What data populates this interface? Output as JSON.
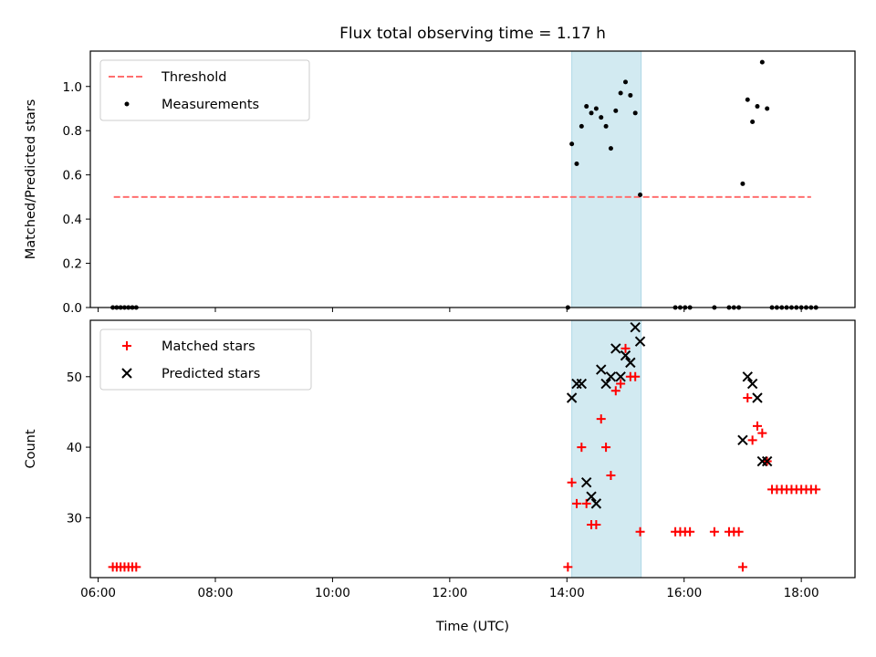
{
  "chart_data": [
    {
      "type": "scatter",
      "title": "Flux total observing time = 1.17 h",
      "xlabel": "",
      "ylabel": "Matched/Predicted stars",
      "xlim": [
        "05:52",
        "18:55"
      ],
      "ylim": [
        0,
        1.16
      ],
      "yticks": [
        0.0,
        0.2,
        0.4,
        0.6,
        0.8,
        1.0
      ],
      "ytick_labels": [
        "0.0",
        "0.2",
        "0.4",
        "0.6",
        "0.8",
        "1.0"
      ],
      "shaded_interval": {
        "from": "14:05",
        "to": "15:16",
        "color": "#add8e6"
      },
      "legend_position": "upper-left",
      "legend": [
        {
          "label": "Threshold",
          "style": "dashed-line",
          "color": "#ff6f6f"
        },
        {
          "label": "Measurements",
          "style": "dot",
          "color": "#000000"
        }
      ],
      "series": [
        {
          "name": "Threshold",
          "style": "dashed-line",
          "color": "#ff6f6f",
          "x": [
            "06:16",
            "18:10"
          ],
          "y": [
            0.5,
            0.5
          ]
        },
        {
          "name": "Measurements",
          "style": "dot",
          "color": "#000000",
          "x": [
            "06:15",
            "06:19",
            "06:23",
            "06:27",
            "06:31",
            "06:35",
            "06:39",
            "14:01",
            "14:05",
            "14:10",
            "14:15",
            "14:20",
            "14:25",
            "14:30",
            "14:35",
            "14:40",
            "14:45",
            "14:50",
            "14:55",
            "15:00",
            "15:05",
            "15:10",
            "15:15",
            "15:51",
            "15:56",
            "16:01",
            "16:06",
            "16:31",
            "16:46",
            "16:51",
            "16:56",
            "17:00",
            "17:05",
            "17:10",
            "17:15",
            "17:20",
            "17:25",
            "17:30",
            "17:35",
            "17:40",
            "17:45",
            "17:50",
            "17:55",
            "18:00",
            "18:05",
            "18:10",
            "18:15"
          ],
          "y": [
            0,
            0,
            0,
            0,
            0,
            0,
            0,
            0,
            0.74,
            0.65,
            0.82,
            0.91,
            0.88,
            0.9,
            0.86,
            0.82,
            0.72,
            0.89,
            0.97,
            1.02,
            0.96,
            0.88,
            0.51,
            0,
            0,
            0,
            0,
            0,
            0,
            0,
            0,
            0.56,
            0.94,
            0.84,
            0.91,
            1.11,
            0.9,
            0,
            0,
            0,
            0,
            0,
            0,
            0,
            0,
            0,
            0
          ]
        }
      ]
    },
    {
      "type": "scatter",
      "title": "",
      "xlabel": "Time (UTC)",
      "ylabel": "Count",
      "xlim": [
        "05:52",
        "18:55"
      ],
      "ylim": [
        21.5,
        58
      ],
      "yticks": [
        30,
        40,
        50
      ],
      "ytick_labels": [
        "30",
        "40",
        "50"
      ],
      "xticks": [
        "06:00",
        "08:00",
        "10:00",
        "12:00",
        "14:00",
        "16:00",
        "18:00"
      ],
      "xtick_labels": [
        "06:00",
        "08:00",
        "10:00",
        "12:00",
        "14:00",
        "16:00",
        "18:00"
      ],
      "shaded_interval": {
        "from": "14:05",
        "to": "15:16",
        "color": "#add8e6"
      },
      "legend_position": "upper-left",
      "legend": [
        {
          "label": "Matched stars",
          "style": "plus",
          "color": "#ff0000"
        },
        {
          "label": "Predicted stars",
          "style": "x",
          "color": "#000000"
        }
      ],
      "series": [
        {
          "name": "Matched stars",
          "style": "plus",
          "color": "#ff0000",
          "x": [
            "06:15",
            "06:19",
            "06:23",
            "06:27",
            "06:31",
            "06:35",
            "06:39",
            "14:01",
            "14:05",
            "14:10",
            "14:15",
            "14:20",
            "14:25",
            "14:30",
            "14:35",
            "14:40",
            "14:45",
            "14:50",
            "14:55",
            "15:00",
            "15:05",
            "15:10",
            "15:15",
            "15:51",
            "15:56",
            "16:01",
            "16:06",
            "16:31",
            "16:46",
            "16:51",
            "16:56",
            "17:00",
            "17:05",
            "17:10",
            "17:15",
            "17:20",
            "17:25",
            "17:30",
            "17:35",
            "17:40",
            "17:45",
            "17:50",
            "17:55",
            "18:00",
            "18:05",
            "18:10",
            "18:15"
          ],
          "y": [
            23,
            23,
            23,
            23,
            23,
            23,
            23,
            23,
            35,
            32,
            40,
            32,
            29,
            29,
            44,
            40,
            36,
            48,
            49,
            54,
            50,
            50,
            28,
            28,
            28,
            28,
            28,
            28,
            28,
            28,
            28,
            23,
            47,
            41,
            43,
            42,
            38,
            34,
            34,
            34,
            34,
            34,
            34,
            34,
            34,
            34,
            34
          ]
        },
        {
          "name": "Predicted stars",
          "style": "x",
          "color": "#000000",
          "x": [
            "14:05",
            "14:10",
            "14:15",
            "14:20",
            "14:25",
            "14:30",
            "14:35",
            "14:40",
            "14:45",
            "14:50",
            "14:55",
            "15:00",
            "15:05",
            "15:10",
            "15:15",
            "17:00",
            "17:05",
            "17:10",
            "17:15",
            "17:20",
            "17:25"
          ],
          "y": [
            47,
            49,
            49,
            35,
            33,
            32,
            51,
            49,
            50,
            54,
            50,
            53,
            52,
            57,
            55,
            41,
            50,
            49,
            47,
            38,
            38
          ]
        }
      ]
    }
  ]
}
